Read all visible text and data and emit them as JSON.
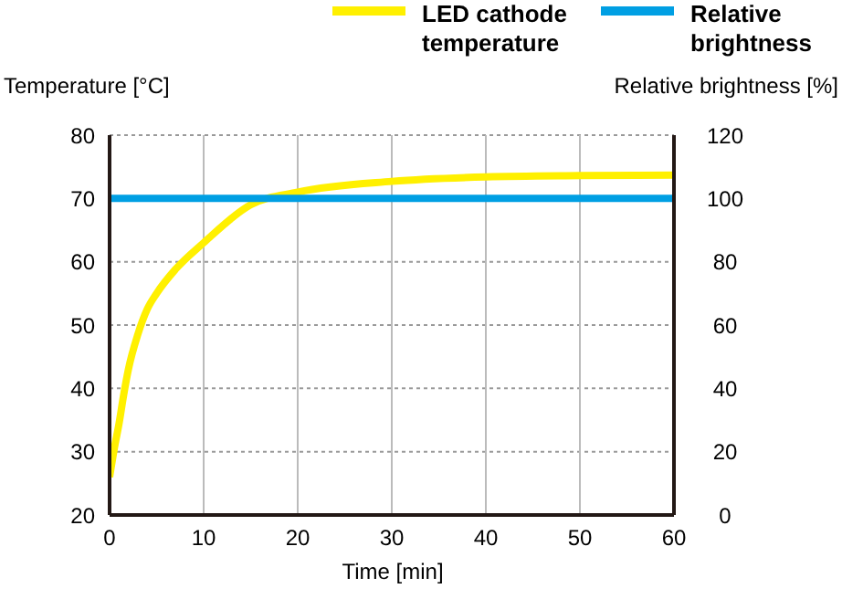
{
  "chart_data": {
    "type": "line",
    "xlabel": "Time [min]",
    "ylabel": "Temperature [°C]",
    "y2label": "Relative brightness [%]",
    "xlim": [
      0,
      60
    ],
    "xticks": [
      0,
      10,
      20,
      30,
      40,
      50,
      60
    ],
    "ylim": [
      20,
      80
    ],
    "yticks": [
      20,
      30,
      40,
      50,
      60,
      70,
      80
    ],
    "y2lim": [
      0,
      120
    ],
    "y2ticks": [
      0,
      20,
      40,
      60,
      80,
      100,
      120
    ],
    "grid": true,
    "legend": "top",
    "marker": "none",
    "line_style": "solid",
    "series": [
      {
        "name": "LED cathode temperature",
        "color": "#fff000",
        "x": [
          0,
          0.5,
          1,
          1.5,
          2,
          3,
          4,
          5,
          7,
          10,
          15,
          20,
          30,
          40,
          50,
          60
        ],
        "values": [
          26,
          30.5,
          34.4,
          39,
          43,
          48.5,
          52.5,
          55,
          58.8,
          63,
          69,
          71,
          72.7,
          73.4,
          73.6,
          73.7
        ]
      },
      {
        "name": "Relative brightness",
        "color": "#009fe3",
        "axis": "y2",
        "x": [
          0,
          5,
          10,
          20,
          30,
          40,
          50,
          60
        ],
        "values": [
          100,
          100,
          100,
          100,
          100,
          100,
          100,
          100
        ]
      }
    ]
  }
}
